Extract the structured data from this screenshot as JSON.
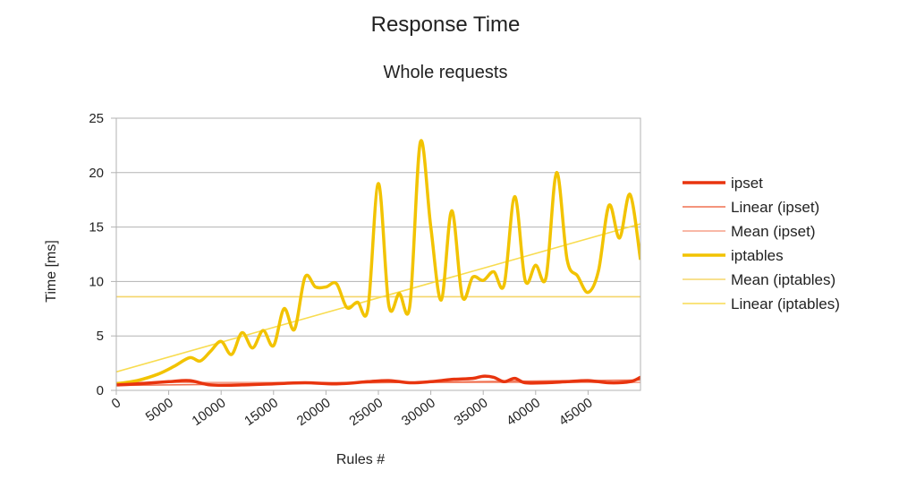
{
  "chart_data": {
    "type": "line",
    "title": "Response Time",
    "subtitle": "Whole requests",
    "xlabel": "Rules #",
    "ylabel": "Time [ms]",
    "xlim": [
      0,
      50000
    ],
    "ylim": [
      0,
      25
    ],
    "xticks": [
      0,
      5000,
      10000,
      15000,
      20000,
      25000,
      30000,
      35000,
      40000,
      45000
    ],
    "yticks": [
      0,
      5,
      10,
      15,
      20,
      25
    ],
    "grid": true,
    "legend_position": "right",
    "series": [
      {
        "name": "ipset",
        "color": "#e8340e",
        "kind": "smooth",
        "x": [
          0,
          2000,
          5000,
          7000,
          9000,
          12000,
          15000,
          18000,
          21000,
          24000,
          26000,
          28000,
          30000,
          32000,
          34000,
          35000,
          36000,
          37000,
          38000,
          39000,
          41000,
          43000,
          45000,
          47000,
          49000,
          50000
        ],
        "y": [
          0.5,
          0.6,
          0.8,
          0.9,
          0.5,
          0.5,
          0.6,
          0.7,
          0.6,
          0.8,
          0.9,
          0.7,
          0.8,
          1.0,
          1.1,
          1.3,
          1.2,
          0.8,
          1.1,
          0.7,
          0.7,
          0.8,
          0.9,
          0.7,
          0.8,
          1.2
        ]
      },
      {
        "name": "Linear (ipset)",
        "color": "#f07050",
        "kind": "line",
        "x": [
          0,
          50000
        ],
        "y": [
          0.45,
          0.95
        ]
      },
      {
        "name": "Mean (ipset)",
        "color": "#f5a08a",
        "kind": "line",
        "x": [
          0,
          50000
        ],
        "y": [
          0.72,
          0.72
        ]
      },
      {
        "name": "iptables",
        "color": "#f2c300",
        "kind": "smooth",
        "x": [
          0,
          2000,
          4000,
          5500,
          7000,
          8000,
          9000,
          10000,
          11000,
          12000,
          13000,
          14000,
          15000,
          16000,
          17000,
          18000,
          19000,
          20000,
          21000,
          22000,
          23000,
          24000,
          25000,
          26000,
          27000,
          28000,
          29000,
          30000,
          31000,
          32000,
          33000,
          34000,
          35000,
          36000,
          37000,
          38000,
          39000,
          40000,
          41000,
          42000,
          43000,
          44000,
          45000,
          46000,
          47000,
          48000,
          49000,
          50000
        ],
        "y": [
          0.6,
          0.9,
          1.5,
          2.2,
          3.0,
          2.7,
          3.6,
          4.5,
          3.3,
          5.3,
          3.9,
          5.5,
          4.1,
          7.5,
          5.6,
          10.4,
          9.5,
          9.5,
          9.8,
          7.6,
          8.1,
          7.5,
          19.0,
          7.8,
          8.9,
          7.8,
          22.8,
          15.0,
          8.3,
          16.5,
          8.6,
          10.4,
          10.1,
          10.9,
          9.7,
          17.8,
          10.1,
          11.5,
          10.4,
          20.0,
          12.0,
          10.5,
          9.0,
          11.0,
          17.0,
          14.0,
          18.0,
          12.0
        ]
      },
      {
        "name": "Mean (iptables)",
        "color": "#f5d56a",
        "kind": "line",
        "x": [
          0,
          50000
        ],
        "y": [
          8.6,
          8.6
        ]
      },
      {
        "name": "Linear (iptables)",
        "color": "#f8dc50",
        "kind": "line",
        "x": [
          0,
          50000
        ],
        "y": [
          1.7,
          15.3
        ]
      }
    ]
  }
}
